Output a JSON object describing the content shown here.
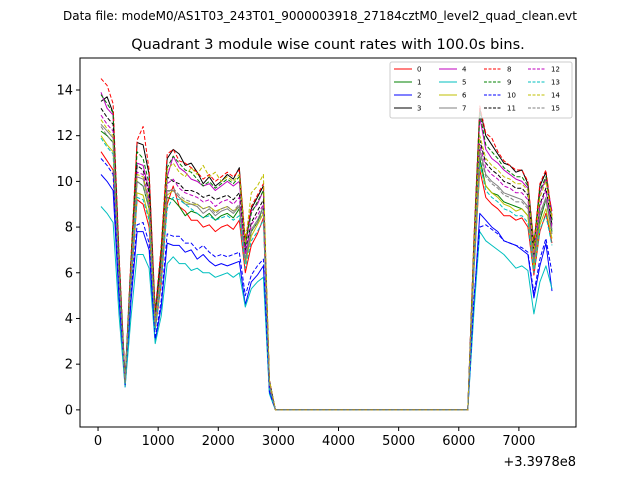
{
  "chart_data": {
    "type": "line",
    "suptitle": "Data file: modeM0/AS1T03_243T01_9000003918_27184cztM0_level2_quad_clean.evt",
    "title": "Quadrant 3 module wise count rates with 100.0s bins.",
    "xlabel": "",
    "ylabel": "",
    "x_offset_label": "+3.3978e8",
    "xlim": [
      -300,
      7950
    ],
    "ylim": [
      -0.75,
      15.4
    ],
    "x_ticks": [
      0,
      1000,
      2000,
      3000,
      4000,
      5000,
      6000,
      7000
    ],
    "x_tick_labels": [
      "0",
      "1000",
      "2000",
      "3000",
      "4000",
      "5000",
      "6000",
      "7000"
    ],
    "y_ticks": [
      0,
      2,
      4,
      6,
      8,
      10,
      12,
      14
    ],
    "y_tick_labels": [
      "0",
      "2",
      "4",
      "6",
      "8",
      "10",
      "12",
      "14"
    ],
    "legend_location": "upper right",
    "legend_columns": 4,
    "x": [
      50,
      150,
      250,
      350,
      450,
      550,
      650,
      750,
      850,
      950,
      1050,
      1150,
      1250,
      1350,
      1450,
      1550,
      1650,
      1750,
      1850,
      1950,
      2050,
      2150,
      2250,
      2350,
      2450,
      2550,
      2650,
      2750,
      2850,
      2950,
      6150,
      6250,
      6350,
      6450,
      6550,
      6650,
      6750,
      6850,
      6950,
      7050,
      7150,
      7250,
      7350,
      7450,
      7550
    ],
    "series": [
      {
        "name": "0",
        "color": "#ff0000",
        "dash": "solid",
        "values": [
          11.3,
          10.9,
          10.5,
          5.5,
          1.2,
          5.5,
          9.2,
          9.0,
          8.0,
          3.5,
          5.5,
          9.0,
          9.8,
          8.9,
          8.7,
          8.3,
          8.3,
          8.0,
          8.1,
          7.8,
          8.0,
          8.1,
          7.9,
          8.3,
          6.0,
          7.2,
          7.7,
          8.4,
          1.0,
          0.0,
          0.0,
          6.0,
          10.5,
          9.3,
          9.0,
          8.8,
          8.5,
          8.5,
          8.3,
          8.4,
          8.0,
          5.9,
          7.8,
          8.6,
          7.3
        ]
      },
      {
        "name": "1",
        "color": "#008000",
        "dash": "solid",
        "values": [
          12.2,
          12.0,
          11.7,
          6.0,
          1.2,
          6.0,
          10.0,
          9.8,
          8.8,
          3.8,
          6.0,
          9.3,
          9.2,
          8.9,
          8.5,
          8.7,
          8.6,
          8.4,
          8.6,
          8.3,
          8.5,
          8.6,
          8.4,
          8.8,
          6.5,
          7.8,
          8.2,
          8.9,
          1.1,
          0.0,
          0.0,
          6.3,
          11.0,
          9.8,
          9.5,
          9.4,
          9.1,
          9.0,
          8.9,
          8.8,
          8.5,
          6.3,
          8.3,
          9.2,
          7.8
        ]
      },
      {
        "name": "2",
        "color": "#0000ff",
        "dash": "solid",
        "values": [
          10.3,
          10.0,
          9.6,
          4.8,
          1.0,
          4.8,
          7.8,
          7.8,
          7.0,
          3.0,
          4.5,
          7.3,
          7.2,
          7.2,
          6.9,
          7.0,
          6.6,
          6.8,
          6.5,
          6.3,
          6.4,
          6.3,
          6.4,
          6.5,
          4.6,
          5.6,
          5.9,
          6.3,
          0.8,
          0.0,
          0.0,
          4.5,
          8.6,
          8.3,
          8.0,
          7.8,
          7.4,
          7.3,
          7.2,
          7.0,
          6.8,
          4.9,
          6.3,
          7.3,
          5.2
        ]
      },
      {
        "name": "3",
        "color": "#000000",
        "dash": "solid",
        "values": [
          13.5,
          13.7,
          13.0,
          6.5,
          1.3,
          6.5,
          11.7,
          11.6,
          10.3,
          4.2,
          7.0,
          11.0,
          11.4,
          11.2,
          10.7,
          10.8,
          10.4,
          9.9,
          10.2,
          9.8,
          10.0,
          10.3,
          10.1,
          10.6,
          7.3,
          8.8,
          9.3,
          9.8,
          1.3,
          0.0,
          0.0,
          7.2,
          13.2,
          12.0,
          11.6,
          11.2,
          10.8,
          10.7,
          10.4,
          10.5,
          9.9,
          7.2,
          9.8,
          10.4,
          8.3
        ]
      },
      {
        "name": "4",
        "color": "#bf00bf",
        "dash": "solid",
        "values": [
          13.9,
          13.2,
          12.9,
          6.5,
          1.2,
          6.3,
          10.8,
          10.7,
          9.6,
          4.0,
          6.6,
          10.2,
          11.1,
          10.6,
          10.4,
          10.1,
          10.0,
          9.8,
          9.9,
          9.6,
          9.8,
          10.0,
          9.8,
          10.0,
          7.1,
          8.7,
          9.0,
          9.6,
          1.2,
          0.0,
          0.0,
          7.0,
          12.8,
          11.4,
          11.0,
          10.8,
          10.5,
          10.3,
          10.1,
          10.0,
          9.7,
          7.0,
          9.5,
          10.1,
          8.7
        ]
      },
      {
        "name": "5",
        "color": "#00bfbf",
        "dash": "solid",
        "values": [
          8.9,
          8.6,
          8.2,
          4.1,
          1.0,
          4.1,
          6.8,
          6.8,
          6.2,
          2.9,
          4.1,
          6.4,
          6.7,
          6.4,
          6.4,
          6.1,
          6.2,
          6.0,
          6.0,
          5.8,
          5.9,
          6.0,
          5.8,
          6.0,
          4.5,
          5.3,
          5.6,
          5.8,
          0.7,
          0.0,
          0.0,
          4.2,
          7.8,
          7.4,
          7.2,
          7.0,
          6.8,
          6.5,
          6.2,
          6.3,
          6.1,
          4.2,
          5.6,
          6.3,
          5.3
        ]
      },
      {
        "name": "6",
        "color": "#bfbf00",
        "dash": "solid",
        "values": [
          12.0,
          11.6,
          11.3,
          5.7,
          1.1,
          5.7,
          9.5,
          9.4,
          8.4,
          3.6,
          5.8,
          9.4,
          9.6,
          9.3,
          9.1,
          9.0,
          9.0,
          8.8,
          8.9,
          8.7,
          8.8,
          8.9,
          8.7,
          8.9,
          6.4,
          7.6,
          8.1,
          8.6,
          1.1,
          0.0,
          0.0,
          6.1,
          10.7,
          9.8,
          9.5,
          9.3,
          9.0,
          8.9,
          8.7,
          8.8,
          8.5,
          6.2,
          8.1,
          8.8,
          7.5
        ]
      },
      {
        "name": "7",
        "color": "#808080",
        "dash": "solid",
        "values": [
          12.5,
          12.2,
          11.9,
          6.0,
          1.2,
          6.1,
          10.2,
          10.1,
          9.0,
          3.8,
          6.2,
          9.6,
          9.6,
          9.3,
          9.0,
          9.0,
          8.9,
          8.6,
          8.8,
          8.5,
          8.7,
          8.8,
          8.6,
          8.9,
          6.6,
          7.9,
          8.3,
          8.9,
          1.1,
          0.0,
          0.0,
          6.5,
          11.4,
          10.3,
          10.0,
          9.8,
          9.5,
          9.4,
          9.3,
          9.2,
          8.9,
          6.5,
          8.6,
          9.3,
          7.9
        ]
      },
      {
        "name": "8",
        "color": "#ff0000",
        "dash": "dashed",
        "values": [
          14.5,
          14.2,
          13.4,
          6.8,
          1.3,
          6.8,
          11.8,
          12.4,
          10.5,
          4.3,
          7.2,
          11.2,
          11.4,
          10.9,
          10.8,
          10.6,
          10.4,
          10.1,
          10.3,
          10.0,
          10.2,
          10.4,
          10.2,
          10.5,
          7.5,
          8.9,
          9.4,
          9.9,
          1.3,
          0.0,
          0.0,
          7.4,
          13.3,
          12.1,
          11.9,
          11.3,
          10.9,
          10.7,
          10.5,
          10.5,
          10.0,
          7.3,
          9.9,
          10.5,
          8.5
        ]
      },
      {
        "name": "9",
        "color": "#008000",
        "dash": "dashed",
        "values": [
          13.8,
          13.4,
          13.0,
          6.6,
          1.3,
          6.6,
          11.3,
          11.0,
          9.9,
          4.1,
          6.8,
          10.6,
          11.1,
          10.8,
          10.5,
          10.4,
          10.1,
          9.8,
          10.0,
          9.7,
          9.9,
          10.1,
          9.9,
          10.2,
          7.2,
          8.6,
          9.1,
          9.6,
          1.2,
          0.0,
          0.0,
          7.1,
          13.0,
          11.6,
          11.3,
          11.0,
          10.6,
          10.4,
          10.2,
          10.2,
          9.8,
          7.1,
          9.6,
          10.2,
          8.3
        ]
      },
      {
        "name": "10",
        "color": "#0000ff",
        "dash": "dashed",
        "values": [
          11.0,
          10.7,
          10.3,
          5.2,
          1.1,
          5.2,
          8.1,
          8.2,
          7.3,
          3.1,
          4.8,
          7.7,
          7.6,
          7.6,
          7.3,
          7.3,
          7.0,
          7.2,
          6.9,
          6.7,
          6.8,
          6.7,
          6.8,
          6.9,
          5.0,
          5.9,
          6.3,
          6.6,
          0.8,
          0.0,
          0.0,
          4.8,
          8.0,
          8.1,
          7.9,
          7.7,
          7.4,
          7.3,
          7.2,
          7.1,
          6.9,
          5.1,
          6.6,
          7.5,
          6.0
        ]
      },
      {
        "name": "11",
        "color": "#000000",
        "dash": "dashed",
        "values": [
          13.2,
          12.8,
          12.5,
          6.3,
          1.2,
          6.3,
          10.7,
          10.5,
          9.5,
          3.9,
          6.5,
          10.2,
          10.0,
          9.9,
          9.6,
          9.6,
          9.5,
          9.3,
          9.4,
          9.2,
          9.3,
          9.4,
          9.2,
          9.5,
          6.9,
          8.2,
          8.7,
          9.2,
          1.2,
          0.0,
          0.0,
          6.8,
          11.8,
          10.8,
          10.5,
          10.3,
          10.0,
          9.9,
          9.7,
          9.7,
          9.4,
          6.8,
          9.0,
          9.7,
          8.1
        ]
      },
      {
        "name": "12",
        "color": "#bf00bf",
        "dash": "dashed",
        "values": [
          12.9,
          12.5,
          12.2,
          6.1,
          1.2,
          6.2,
          10.4,
          10.3,
          9.2,
          3.9,
          6.3,
          9.9,
          10.1,
          9.7,
          9.5,
          9.4,
          9.3,
          9.1,
          9.2,
          8.9,
          9.1,
          9.2,
          9.0,
          9.3,
          6.8,
          8.1,
          8.5,
          9.0,
          1.2,
          0.0,
          0.0,
          6.6,
          11.6,
          10.6,
          10.3,
          10.1,
          9.8,
          9.7,
          9.5,
          9.5,
          9.2,
          6.7,
          8.9,
          9.6,
          8.0
        ]
      },
      {
        "name": "13",
        "color": "#00bfbf",
        "dash": "dashed",
        "values": [
          11.9,
          11.5,
          11.2,
          5.6,
          1.1,
          5.6,
          9.3,
          9.2,
          8.3,
          3.5,
          5.6,
          8.8,
          9.3,
          9.2,
          9.0,
          8.8,
          8.6,
          8.4,
          8.5,
          8.3,
          8.4,
          8.5,
          8.3,
          8.5,
          6.2,
          7.4,
          7.8,
          8.3,
          1.0,
          0.0,
          0.0,
          6.0,
          10.8,
          9.6,
          9.3,
          9.1,
          8.8,
          8.7,
          8.5,
          8.5,
          8.2,
          6.0,
          7.9,
          8.5,
          7.2
        ]
      },
      {
        "name": "14",
        "color": "#bfbf00",
        "dash": "dashed",
        "values": [
          12.7,
          12.3,
          12.0,
          6.0,
          1.2,
          6.1,
          10.3,
          10.2,
          9.1,
          3.8,
          6.2,
          10.5,
          10.8,
          10.4,
          10.2,
          10.6,
          10.3,
          10.7,
          10.2,
          10.4,
          10.0,
          10.2,
          10.0,
          10.3,
          7.3,
          9.5,
          9.8,
          10.3,
          1.3,
          0.0,
          0.0,
          6.9,
          12.0,
          11.0,
          10.7,
          10.5,
          10.2,
          10.1,
          9.9,
          9.9,
          9.6,
          6.9,
          9.3,
          10.0,
          8.4
        ]
      },
      {
        "name": "15",
        "color": "#808080",
        "dash": "dashed",
        "values": [
          12.4,
          12.0,
          11.7,
          5.9,
          1.2,
          5.9,
          10.0,
          9.8,
          8.8,
          3.7,
          6.0,
          9.5,
          9.7,
          9.4,
          9.2,
          9.1,
          9.0,
          8.8,
          8.9,
          8.6,
          8.8,
          8.9,
          8.7,
          9.0,
          6.5,
          7.8,
          8.2,
          8.7,
          1.1,
          0.0,
          0.0,
          6.4,
          11.2,
          10.2,
          9.9,
          9.7,
          9.4,
          9.3,
          9.1,
          9.1,
          8.8,
          6.4,
          8.5,
          9.2,
          7.7
        ]
      }
    ]
  }
}
